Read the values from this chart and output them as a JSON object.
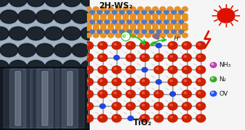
{
  "title_top": "2H-WS₂",
  "title_bottom": "TiO₂",
  "legend_items": [
    {
      "label": "NH₃",
      "color1": "#bb44aa",
      "color2": "#444444"
    },
    {
      "label": "N₂",
      "color1": "#33aa22",
      "color2": "#226611"
    },
    {
      "label": "OV",
      "color1": "#2255ee",
      "color2": "#113388"
    }
  ],
  "electron_label": "e⁻",
  "proton_label": "H⁺",
  "bg_color": "#f5f5f5",
  "sun_color": "#dd1100",
  "ws2_orange": "#e89020",
  "ws2_blue": "#5577bb",
  "ws2_bond": "#aaaacc",
  "tio2_red": "#cc2200",
  "tio2_gray": "#888888",
  "tio2_blue": "#2244dd",
  "arrow_color": "#22bb22",
  "sem_bg": "#8899aa",
  "sem_hole": "#111820",
  "sem_rim": "#aabbcc",
  "xsec_bg": "#0a1018"
}
